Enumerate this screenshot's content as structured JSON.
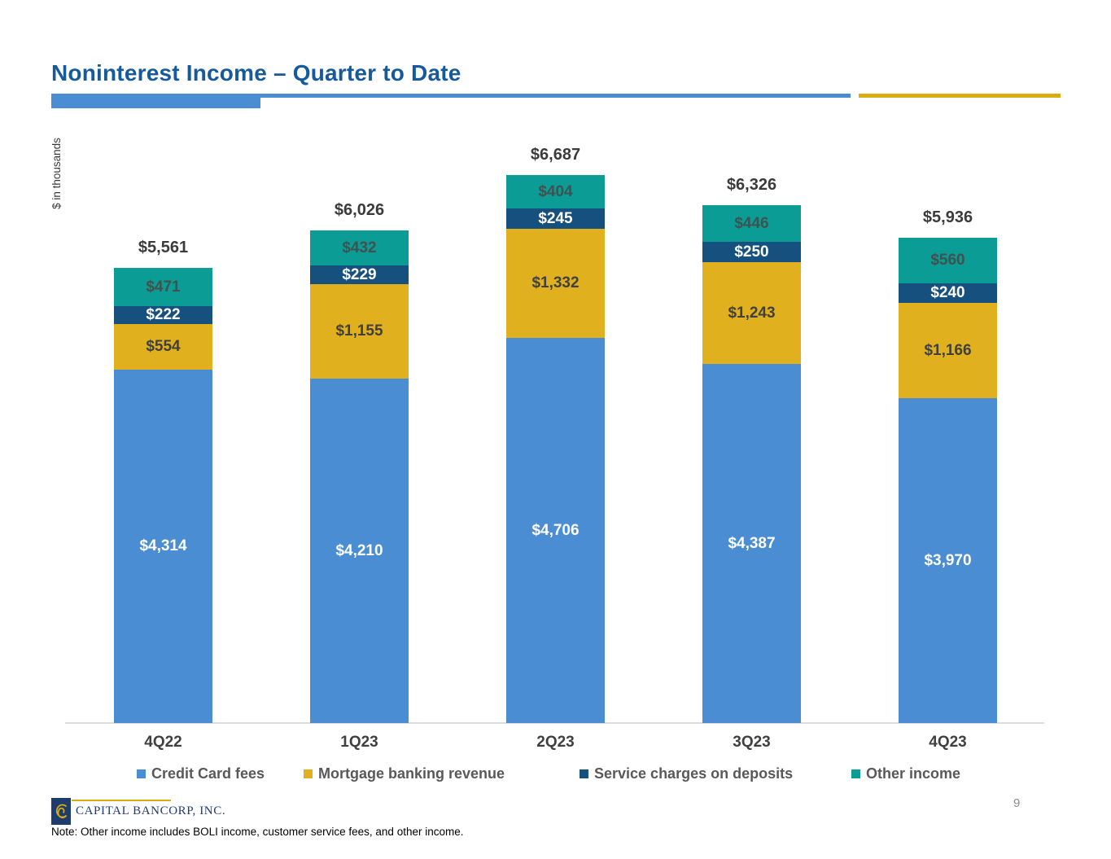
{
  "header": {
    "title": "Noninterest Income – Quarter to Date"
  },
  "chart_data": {
    "type": "bar",
    "stacked": true,
    "title": "Noninterest Income – Quarter to Date",
    "ylabel": "$ in thousands",
    "xlabel": "",
    "grid": false,
    "legend_position": "bottom",
    "value_prefix": "$",
    "categories": [
      "4Q22",
      "1Q23",
      "2Q23",
      "3Q23",
      "4Q23"
    ],
    "series": [
      {
        "name": "Credit Card fees",
        "color": "#4B8DD2",
        "label_color": "#FFFFFF",
        "values": [
          4314,
          4210,
          4706,
          4387,
          3970
        ]
      },
      {
        "name": "Mortgage banking revenue",
        "color": "#E0B01E",
        "label_color": "#404040",
        "values": [
          554,
          1155,
          1332,
          1243,
          1166
        ]
      },
      {
        "name": "Service charges on deposits",
        "color": "#15507F",
        "label_color": "#FFFFFF",
        "values": [
          222,
          229,
          245,
          250,
          240
        ]
      },
      {
        "name": "Other income",
        "color": "#0C9C96",
        "label_color": "#40514E",
        "values": [
          471,
          432,
          404,
          446,
          560
        ]
      }
    ],
    "totals": [
      5561,
      6026,
      6687,
      6326,
      5936
    ]
  },
  "footer": {
    "logo_text": "CAPITAL BANCORP, INC.",
    "note": "Note: Other income includes BOLI income, customer service fees, and other income.",
    "page_number": "9"
  },
  "colors": {
    "title_blue": "#175A9C",
    "accent_blue": "#4B8DD2",
    "accent_gold": "#D9AC10"
  }
}
